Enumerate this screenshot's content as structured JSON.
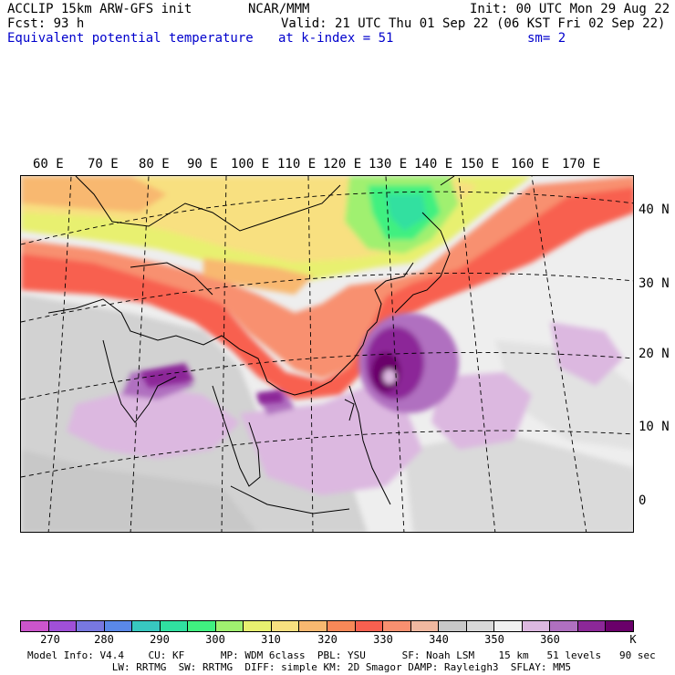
{
  "header": {
    "line1_left": "ACCLIP 15km ARW-GFS init",
    "line1_center": "NCAR/MMM",
    "line1_right": "Init: 00 UTC Mon 29 Aug 22",
    "line2_left": "Fcst:   93 h",
    "line2_right": "Valid: 21 UTC Thu 01 Sep 22 (06 KST Fri 02 Sep 22)",
    "line3_left": "Equivalent potential temperature",
    "line3_center": "at k-index =  51",
    "line3_right": "sm= 2"
  },
  "map": {
    "lon_labels": [
      "60 E",
      "70 E",
      "80 E",
      "90 E",
      "100 E",
      "110 E",
      "120 E",
      "130 E",
      "140 E",
      "150 E",
      "160 E",
      "170 E"
    ],
    "lat_labels": [
      "40 N",
      "30 N",
      "20 N",
      "10 N",
      "0"
    ]
  },
  "colorbar": {
    "colors": [
      "#cc55cc",
      "#a050d8",
      "#7878e0",
      "#5a88e8",
      "#38c8c0",
      "#30e0a0",
      "#40f080",
      "#a0f070",
      "#e8f070",
      "#f8e080",
      "#f8b870",
      "#f88858",
      "#f86050",
      "#f89070",
      "#f0b8a0",
      "#c8c8c8",
      "#d8d8d8",
      "#f0f0f0",
      "#dcb8e0",
      "#b070c0",
      "#8c2898",
      "#6a006a"
    ],
    "ticks": [
      "270",
      "280",
      "290",
      "300",
      "310",
      "320",
      "330",
      "340",
      "350",
      "360"
    ],
    "unit": "K"
  },
  "footer": {
    "line1": "Model Info: V4.4    CU: KF      MP: WDM 6class  PBL: YSU      SF: Noah LSM    15 km   51 levels   90 sec",
    "line2": "              LW: RRTMG  SW: RRTMG  DIFF: simple KM: 2D Smagor DAMP: Rayleigh3  SFLAY: MM5"
  }
}
